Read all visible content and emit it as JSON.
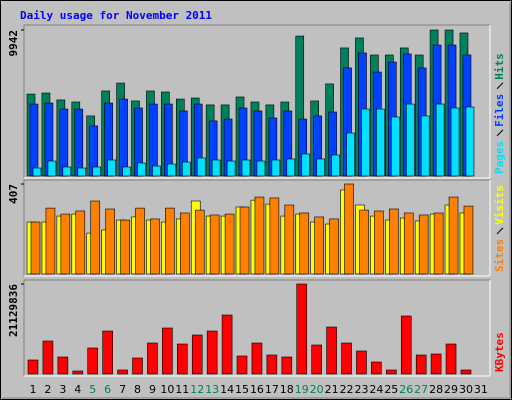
{
  "chart_data": {
    "type": "bar",
    "title": "Daily usage for November 2011",
    "categories": [
      "1",
      "2",
      "3",
      "4",
      "5",
      "6",
      "7",
      "8",
      "9",
      "10",
      "11",
      "12",
      "13",
      "14",
      "15",
      "16",
      "17",
      "18",
      "19",
      "20",
      "21",
      "22",
      "23",
      "24",
      "25",
      "26",
      "27",
      "28",
      "29",
      "30",
      "31"
    ],
    "category_colors": [
      "#000000",
      "#000000",
      "#000000",
      "#000000",
      "#00805c",
      "#00805c",
      "#000000",
      "#000000",
      "#000000",
      "#000000",
      "#000000",
      "#00805c",
      "#00805c",
      "#000000",
      "#000000",
      "#000000",
      "#000000",
      "#000000",
      "#00805c",
      "#00805c",
      "#000000",
      "#000000",
      "#000000",
      "#000000",
      "#000000",
      "#00805c",
      "#00805c",
      "#000000",
      "#000000",
      "#000000",
      "#000000"
    ],
    "panels": [
      {
        "ylim": [
          0,
          9942
        ],
        "yticks": [
          9942
        ],
        "series": [
          {
            "name": "Hits",
            "color": "#00805c",
            "values": [
              5580,
              5650,
              5180,
              5040,
              4090,
              5790,
              6330,
              5110,
              5790,
              5720,
              5240,
              5310,
              4840,
              4840,
              5380,
              5040,
              4840,
              5040,
              9530,
              5110,
              6270,
              8720,
              9400,
              8240,
              8240,
              8720,
              8240,
              9942,
              9942,
              9740,
              null
            ]
          },
          {
            "name": "Files",
            "color": "#0040ff",
            "values": [
              4900,
              4970,
              4560,
              4560,
              3410,
              4970,
              5240,
              4630,
              4900,
              4900,
              4430,
              4900,
              3750,
              3880,
              4630,
              4430,
              3950,
              4430,
              3880,
              4090,
              4360,
              7360,
              8380,
              7080,
              7760,
              8310,
              7360,
              8920,
              8920,
              8240,
              null
            ]
          },
          {
            "name": "Pages",
            "color": "#00e0ff",
            "values": [
              545,
              1020,
              613,
              545,
              613,
              1090,
              613,
              885,
              681,
              817,
              953,
              1230,
              1090,
              1020,
              1090,
              1020,
              1090,
              1160,
              1500,
              1160,
              1430,
              2930,
              4560,
              4560,
              4020,
              4900,
              4090,
              4900,
              4630,
              4700,
              null
            ]
          }
        ]
      },
      {
        "ylim": [
          0,
          407
        ],
        "yticks": [
          407
        ],
        "series": [
          {
            "name": "Visits",
            "color": "#ffff00",
            "values": [
              235,
              235,
              262,
              271,
              185,
              199,
              244,
              258,
              244,
              235,
              249,
              330,
              262,
              262,
              303,
              334,
              316,
              262,
              271,
              235,
              226,
              380,
              312,
              262,
              244,
              253,
              240,
              271,
              312,
              276,
              null
            ]
          },
          {
            "name": "Sites",
            "color": "#ff8000",
            "values": [
              235,
              298,
              271,
              285,
              330,
              294,
              244,
              298,
              249,
              298,
              276,
              289,
              267,
              271,
              303,
              348,
              344,
              312,
              276,
              258,
              249,
              407,
              289,
              285,
              294,
              276,
              267,
              276,
              348,
              307,
              null
            ]
          }
        ]
      },
      {
        "ylim": [
          0,
          21129836
        ],
        "yticks": [
          21129836
        ],
        "series": [
          {
            "name": "KBytes",
            "color": "#ff0000",
            "values": [
              3286864,
              7747608,
              3991192,
              704328,
              6104176,
              10095368,
              939104,
              3756416,
              7278056,
              10799696,
              7043280,
              9156264,
              10095368,
              13851784,
              4225968,
              7278056,
              4460744,
              3991192,
              21129836,
              6808504,
              11034472,
              7278056,
              5399848,
              2817312,
              939104,
              13616992,
              4460744,
              4695520,
              7043280,
              939104,
              null
            ]
          }
        ]
      }
    ]
  }
}
